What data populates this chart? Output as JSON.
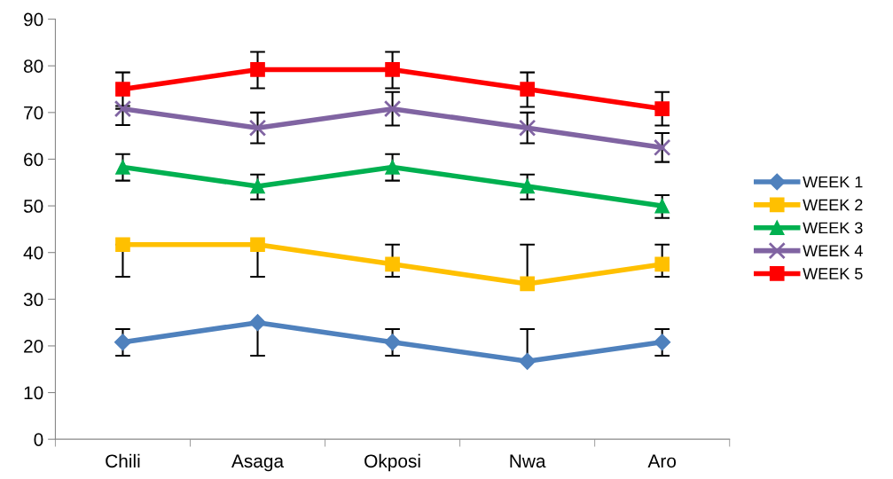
{
  "chart_data": {
    "type": "line",
    "categories": [
      "Chili",
      "Asaga",
      "Okposi",
      "Nwa",
      "Aro"
    ],
    "ylim": [
      0,
      90
    ],
    "yticks": [
      0,
      10,
      20,
      30,
      40,
      50,
      60,
      70,
      80,
      90
    ],
    "grid": false,
    "legend": "right",
    "series": [
      {
        "name": "WEEK 1",
        "color": "#4f81bd",
        "marker": "diamond",
        "values": [
          20.8,
          25,
          20.8,
          16.7,
          20.8
        ],
        "errors": [
          [
            17.9,
            23.6
          ],
          [
            17.9,
            25
          ],
          [
            17.9,
            23.6
          ],
          [
            16.7,
            23.6
          ],
          [
            17.9,
            23.6
          ]
        ]
      },
      {
        "name": "WEEK 2",
        "color": "#ffc000",
        "marker": "square",
        "values": [
          41.7,
          41.7,
          37.5,
          33.3,
          37.5
        ],
        "errors": [
          [
            34.8,
            41.7
          ],
          [
            34.8,
            41.7
          ],
          [
            34.8,
            41.7
          ],
          [
            33.3,
            41.7
          ],
          [
            34.8,
            41.7
          ]
        ]
      },
      {
        "name": "WEEK 3",
        "color": "#00b050",
        "marker": "triangle",
        "values": [
          58.3,
          54.2,
          58.3,
          54.2,
          50
        ],
        "errors": [
          [
            55.4,
            61.1
          ],
          [
            51.4,
            56.7
          ],
          [
            55.4,
            61.1
          ],
          [
            51.4,
            56.7
          ],
          [
            47.4,
            52.3
          ]
        ]
      },
      {
        "name": "WEEK 4",
        "color": "#8064a2",
        "marker": "cross",
        "values": [
          70.8,
          66.7,
          70.8,
          66.7,
          62.5
        ],
        "errors": [
          [
            67.3,
            70.8
          ],
          [
            63.4,
            70.0
          ],
          [
            67.2,
            74.4
          ],
          [
            63.4,
            70.0
          ],
          [
            59.4,
            65.6
          ]
        ]
      },
      {
        "name": "WEEK 5",
        "color": "#ff0000",
        "marker": "square",
        "values": [
          75,
          79.2,
          79.2,
          75,
          70.8
        ],
        "errors": [
          [
            71.4,
            78.6
          ],
          [
            75.2,
            83.0
          ],
          [
            75.2,
            83.0
          ],
          [
            71.2,
            78.6
          ],
          [
            67.2,
            74.4
          ]
        ]
      }
    ]
  }
}
